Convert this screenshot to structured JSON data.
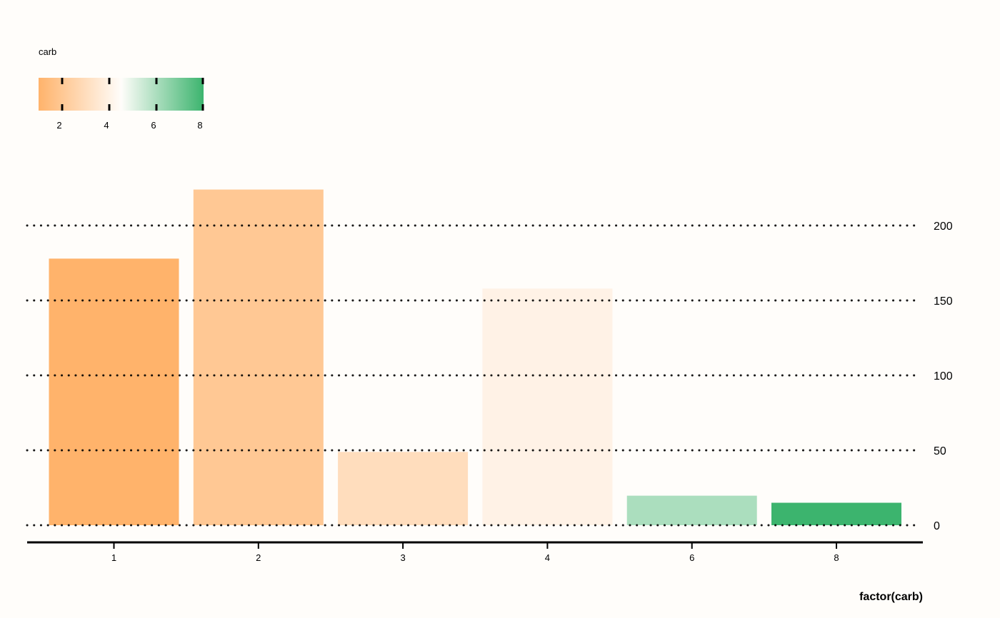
{
  "chart_data": {
    "type": "bar",
    "title": "",
    "xlabel": "factor(carb)",
    "ylabel": "",
    "categories": [
      "1",
      "2",
      "3",
      "4",
      "6",
      "8"
    ],
    "values": [
      177.9,
      224.0,
      48.9,
      157.9,
      19.7,
      15.0
    ],
    "ylim": [
      0,
      230
    ],
    "yticks": [
      0,
      50,
      100,
      150,
      200
    ],
    "ytick_labels": [
      "0",
      "50",
      "100",
      "150",
      "200"
    ],
    "y_axis_position": "right",
    "grid": "horizontal dotted",
    "bar_fill_values": [
      1,
      2,
      3,
      4,
      6,
      8
    ],
    "legend": {
      "title": "carb",
      "placement": "top-left",
      "type": "colorbar",
      "range": [
        1,
        8
      ],
      "ticks": [
        2,
        4,
        6,
        8
      ],
      "tick_labels": [
        "2",
        "4",
        "6",
        "8"
      ],
      "colors": {
        "low": "#FFB36B",
        "mid": "#FFFDFA",
        "high": "#3CB46E",
        "midpoint": 4.5
      }
    }
  }
}
